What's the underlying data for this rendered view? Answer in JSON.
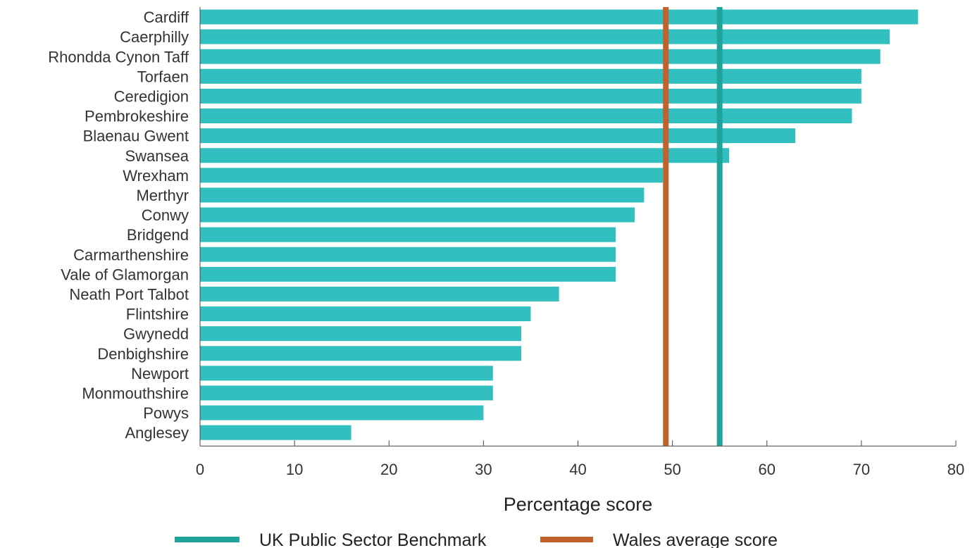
{
  "chart_data": {
    "type": "bar",
    "orientation": "horizontal",
    "categories": [
      "Cardiff",
      "Caerphilly",
      "Rhondda Cynon Taff",
      "Torfaen",
      "Ceredigion",
      "Pembrokeshire",
      "Blaenau Gwent",
      "Swansea",
      "Wrexham",
      "Merthyr",
      "Conwy",
      "Bridgend",
      "Carmarthenshire",
      "Vale of Glamorgan",
      "Neath Port Talbot",
      "Flintshire",
      "Gwynedd",
      "Denbighshire",
      "Newport",
      "Monmouthshire",
      "Powys",
      "Anglesey"
    ],
    "values": [
      76,
      73,
      72,
      70,
      70,
      69,
      63,
      56,
      49,
      47,
      46,
      44,
      44,
      44,
      38,
      35,
      34,
      34,
      31,
      31,
      30,
      16
    ],
    "xlabel": "Percentage score",
    "xlim": [
      0,
      80
    ],
    "xticks": [
      0,
      10,
      20,
      30,
      40,
      50,
      60,
      70,
      80
    ],
    "grid": false,
    "bar_color": "#31bfbf",
    "reference_lines": [
      {
        "name": "UK Public Sector Benchmark",
        "value": 55,
        "color": "#1fa39b"
      },
      {
        "name": "Wales average score",
        "value": 49.3,
        "color": "#c1612c"
      }
    ],
    "legend_position": "bottom"
  }
}
